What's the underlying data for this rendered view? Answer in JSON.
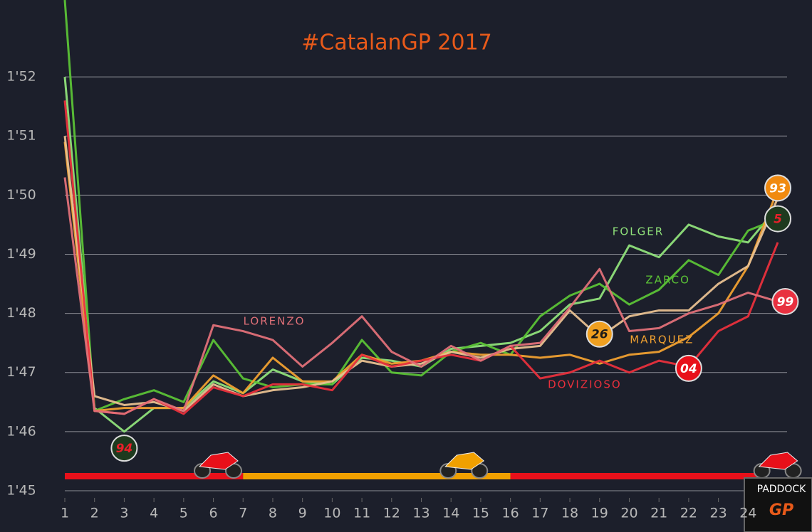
{
  "chart_data": {
    "type": "line",
    "title": "#CatalanGP 2017",
    "x": [
      1,
      2,
      3,
      4,
      5,
      6,
      7,
      8,
      9,
      10,
      11,
      12,
      13,
      14,
      15,
      16,
      17,
      18,
      19,
      20,
      21,
      22,
      23,
      24,
      25
    ],
    "xlim": [
      1,
      25
    ],
    "xticks": [
      1,
      2,
      3,
      4,
      5,
      6,
      7,
      8,
      9,
      10,
      11,
      12,
      13,
      14,
      15,
      16,
      17,
      18,
      19,
      20,
      21,
      22,
      23,
      24
    ],
    "ylim": [
      105,
      113.3
    ],
    "yticks": [
      {
        "value": 105,
        "label": "1'45"
      },
      {
        "value": 106,
        "label": "1'46"
      },
      {
        "value": 107,
        "label": "1'47"
      },
      {
        "value": 108,
        "label": "1'48"
      },
      {
        "value": 109,
        "label": "1'49"
      },
      {
        "value": 110,
        "label": "1'50"
      },
      {
        "value": 111,
        "label": "1'51"
      },
      {
        "value": 112,
        "label": "1'52"
      }
    ],
    "grid": true,
    "series": [
      {
        "name": "FOLGER",
        "color": "#8fe07a",
        "label_at": [
          20.3,
          109.38
        ],
        "values": [
          112.0,
          106.4,
          106.0,
          106.4,
          106.4,
          106.85,
          106.65,
          107.05,
          106.85,
          106.8,
          107.25,
          107.2,
          107.1,
          107.4,
          107.45,
          107.5,
          107.7,
          108.15,
          108.25,
          109.15,
          108.95,
          109.5,
          109.3,
          109.2,
          109.8
        ]
      },
      {
        "name": "ZARCO",
        "color": "#5bc236",
        "label_at": [
          21.3,
          108.56
        ],
        "values": [
          113.3,
          106.35,
          106.55,
          106.7,
          106.5,
          107.55,
          106.9,
          106.75,
          106.8,
          106.8,
          107.55,
          107.0,
          106.95,
          107.35,
          107.5,
          107.3,
          107.95,
          108.3,
          108.5,
          108.15,
          108.4,
          108.9,
          108.65,
          109.4,
          109.6
        ]
      },
      {
        "name": "MARQUEZ",
        "color": "#f0a030",
        "label_at": [
          21.1,
          107.55
        ],
        "values": [
          110.9,
          106.35,
          106.4,
          106.4,
          106.4,
          106.95,
          106.65,
          107.25,
          106.85,
          106.85,
          107.3,
          107.15,
          107.2,
          107.35,
          107.3,
          107.3,
          107.25,
          107.3,
          107.15,
          107.3,
          107.35,
          107.6,
          108.0,
          108.8,
          110.1
        ]
      },
      {
        "color": "#e8c090",
        "values": [
          111.0,
          106.6,
          106.45,
          106.5,
          106.35,
          106.8,
          106.6,
          106.7,
          106.75,
          106.85,
          107.2,
          107.1,
          107.15,
          107.35,
          107.25,
          107.4,
          107.45,
          108.05,
          107.6,
          107.95,
          108.05,
          108.05,
          108.5,
          108.8,
          109.95
        ]
      },
      {
        "name": "DOVIZIOSO",
        "color": "#e8303c",
        "label_at": [
          18.5,
          106.79
        ],
        "values": [
          111.6,
          106.35,
          106.3,
          106.55,
          106.3,
          106.75,
          106.6,
          106.8,
          106.8,
          106.7,
          107.3,
          107.1,
          107.2,
          107.3,
          107.2,
          107.45,
          106.9,
          107.0,
          107.2,
          107.0,
          107.2,
          107.1,
          107.7,
          107.95,
          109.2
        ]
      },
      {
        "name": "LORENZO",
        "color": "#e07078",
        "label_at": [
          8.05,
          107.86
        ],
        "values": [
          110.3,
          106.35,
          106.3,
          106.55,
          106.35,
          107.8,
          107.7,
          107.55,
          107.1,
          107.5,
          107.95,
          107.35,
          107.1,
          107.45,
          107.2,
          107.45,
          107.5,
          108.1,
          108.75,
          107.7,
          107.75,
          108.0,
          108.15,
          108.35,
          108.2
        ]
      }
    ],
    "badges": [
      {
        "text": "94",
        "at": [
          3,
          105.72
        ],
        "color": "#1e3a1e",
        "text_color": "#e8202a"
      },
      {
        "text": "26",
        "at": [
          19,
          107.65
        ],
        "color": "#f0a020",
        "text_color": "#1a1a1a"
      },
      {
        "text": "04",
        "at": [
          22,
          107.07
        ],
        "color": "#e8101a",
        "text_color": "#ffffff"
      },
      {
        "text": "93",
        "at": [
          25,
          110.12
        ],
        "color": "#f08a10",
        "text_color": "#ffffff"
      },
      {
        "text": "5",
        "at": [
          25,
          109.6
        ],
        "color": "#1e3a1e",
        "text_color": "#e8202a"
      },
      {
        "text": "99",
        "at": [
          25.25,
          108.2
        ],
        "color": "#e83040",
        "text_color": "#ffffff"
      }
    ],
    "leader_segments": [
      {
        "from": 1,
        "to": 7,
        "color": "#e8101a"
      },
      {
        "from": 7,
        "to": 16,
        "color": "#f0a000"
      },
      {
        "from": 16,
        "to": 24.3,
        "color": "#e8101a"
      }
    ],
    "logo": {
      "line1": "PADDOCK",
      "line2": "GP"
    }
  }
}
